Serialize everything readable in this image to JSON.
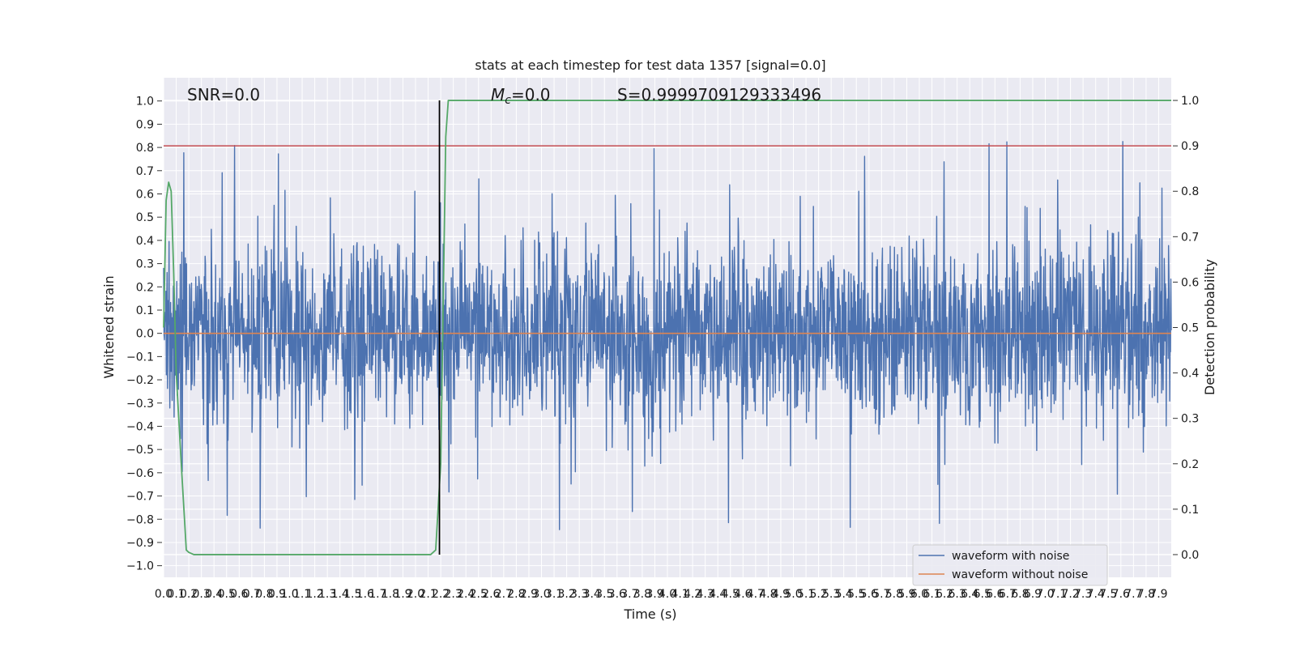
{
  "chart_data": {
    "type": "line",
    "title": "stats at each timestep for test data 1357 [signal=0.0]",
    "xlabel": "Time (s)",
    "ylabel": "Whitened strain",
    "y2label": "Detection probability",
    "xlim": [
      0.0,
      8.0
    ],
    "ylim": [
      -1.05,
      1.1
    ],
    "y2lim": [
      -0.05,
      1.05
    ],
    "grid": true,
    "legend_placement": "lower-right",
    "x_ticks": [
      0.0,
      0.1,
      0.2,
      0.3,
      0.4,
      0.5,
      0.6,
      0.7,
      0.8,
      0.9,
      1.0,
      1.1,
      1.2,
      1.3,
      1.4,
      1.5,
      1.6,
      1.7,
      1.8,
      1.9,
      2.0,
      2.1,
      2.2,
      2.3,
      2.4,
      2.5,
      2.6,
      2.7,
      2.8,
      2.9,
      3.0,
      3.1,
      3.2,
      3.3,
      3.4,
      3.5,
      3.6,
      3.7,
      3.8,
      3.9,
      4.0,
      4.1,
      4.2,
      4.3,
      4.4,
      4.5,
      4.6,
      4.7,
      4.8,
      4.9,
      5.0,
      5.1,
      5.2,
      5.3,
      5.4,
      5.5,
      5.6,
      5.7,
      5.8,
      5.9,
      6.0,
      6.1,
      6.2,
      6.3,
      6.4,
      6.5,
      6.6,
      6.7,
      6.8,
      6.9,
      7.0,
      7.1,
      7.2,
      7.3,
      7.4,
      7.5,
      7.6,
      7.7,
      7.8,
      7.9
    ],
    "y_ticks": [
      -1.0,
      -0.9,
      -0.8,
      -0.7,
      -0.6,
      -0.5,
      -0.4,
      -0.3,
      -0.2,
      -0.1,
      0.0,
      0.1,
      0.2,
      0.3,
      0.4,
      0.5,
      0.6,
      0.7,
      0.8,
      0.9,
      1.0
    ],
    "y2_ticks": [
      0.0,
      0.1,
      0.2,
      0.3,
      0.4,
      0.5,
      0.6,
      0.7,
      0.8,
      0.9,
      1.0
    ],
    "annotations": {
      "snr": "SNR=0.0",
      "mc_symbol": "M",
      "mc_sub": "c",
      "mc_value": "=0.0",
      "s": "S=0.9999709129333496"
    },
    "series": [
      {
        "name": "waveform with noise",
        "axis": "left",
        "color": "#4c72b0",
        "x_range": [
          0.0,
          8.0
        ],
        "envelope": "noise spanning roughly -0.75 to 0.85 with outliers near -0.93 and 1.0"
      },
      {
        "name": "waveform without noise",
        "axis": "left",
        "color": "#dd8452",
        "x": [
          0.0,
          8.0
        ],
        "y": [
          0.0,
          0.0
        ]
      },
      {
        "name": "detection probability",
        "axis": "right",
        "color": "#55a868",
        "x": [
          0.0,
          0.02,
          0.04,
          0.06,
          0.08,
          0.1,
          0.14,
          0.18,
          0.2,
          0.24,
          2.12,
          2.16,
          2.2,
          2.24,
          2.26,
          8.0
        ],
        "y": [
          0.5,
          0.78,
          0.82,
          0.8,
          0.62,
          0.4,
          0.2,
          0.01,
          0.005,
          0.0,
          0.0,
          0.01,
          0.2,
          0.92,
          1.0,
          1.0
        ]
      }
    ],
    "threshold_line": {
      "axis": "right",
      "value": 0.9,
      "color": "#c44e52"
    },
    "vertical_marker": {
      "x": 2.19,
      "color": "#000000"
    },
    "colors": {
      "plot_background": "#eaeaf2",
      "grid": "#ffffff",
      "noise": "#4c72b0",
      "clean": "#dd8452",
      "probability": "#55a868",
      "threshold": "#c44e52"
    }
  }
}
